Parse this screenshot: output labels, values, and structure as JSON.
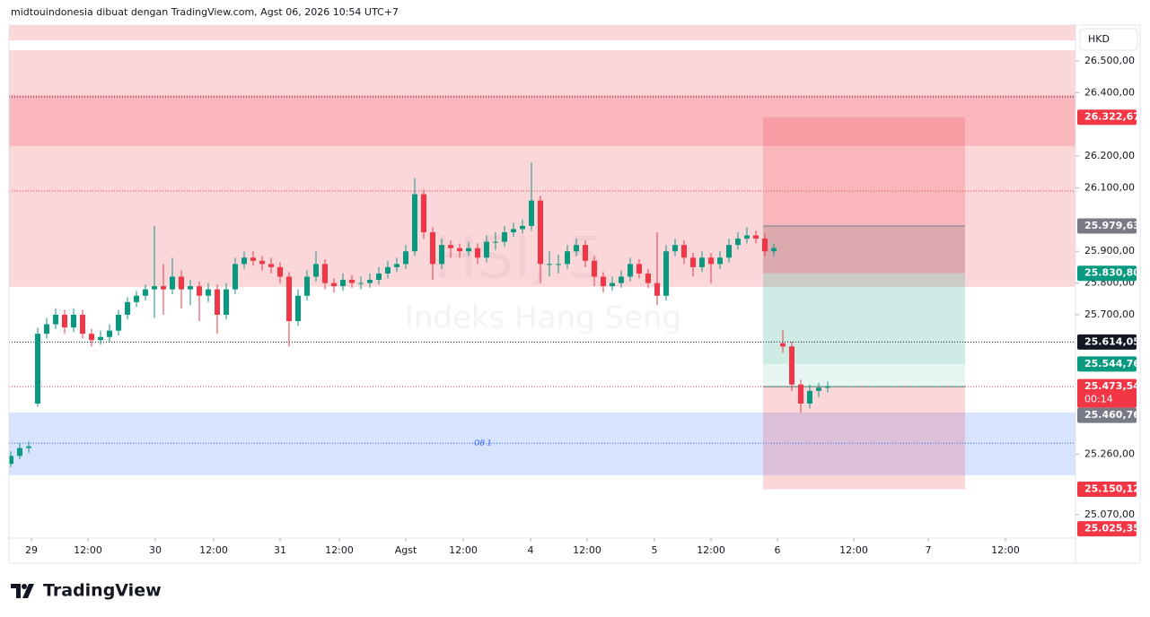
{
  "chart_data": {
    "type": "candlestick",
    "title": "midtouindonesia dibuat dengan TradingView.com, Agst 06, 2026 10:54 UTC+7",
    "currency": "HKD",
    "watermark": "HSI, 5",
    "watermark_subtitle": "Indeks Hang Seng",
    "footer": "TradingView",
    "up_color": "#089981",
    "down_color": "#f23645",
    "ylim": [
      24996,
      26613
    ],
    "yticks": [
      {
        "value": 26500,
        "label": "26.500,00"
      },
      {
        "value": 26400,
        "label": "26.400,00"
      },
      {
        "value": 26200,
        "label": "26.200,00"
      },
      {
        "value": 26100,
        "label": "26.100,00"
      },
      {
        "value": 25900,
        "label": "25.900,00"
      },
      {
        "value": 25800,
        "label": "25.800,00"
      },
      {
        "value": 25700,
        "label": "25.700,00"
      },
      {
        "value": 25260,
        "label": "25.260,00"
      },
      {
        "value": 25070,
        "label": "25.070,00"
      }
    ],
    "xlim": [
      -0.2,
      118.6
    ],
    "xticks": [
      {
        "value": 2.3,
        "label": "29"
      },
      {
        "value": 8.6,
        "label": "12:00"
      },
      {
        "value": 16.1,
        "label": "30"
      },
      {
        "value": 22.6,
        "label": "12:00"
      },
      {
        "value": 30,
        "label": "31"
      },
      {
        "value": 36.6,
        "label": "12:00"
      },
      {
        "value": 44,
        "label": "Agst"
      },
      {
        "value": 50.4,
        "label": "12:00"
      },
      {
        "value": 57.9,
        "label": "4"
      },
      {
        "value": 64.2,
        "label": "12:00"
      },
      {
        "value": 71.7,
        "label": "5"
      },
      {
        "value": 78,
        "label": "12:00"
      },
      {
        "value": 85.4,
        "label": "6"
      },
      {
        "value": 93.9,
        "label": "12:00"
      },
      {
        "value": 102.2,
        "label": "7"
      },
      {
        "value": 110.8,
        "label": "12:00"
      }
    ],
    "zones": [
      {
        "lo": 26565,
        "hi": 26613,
        "color": "rgba(242,54,69,0.2)"
      },
      {
        "lo": 25788,
        "hi": 26534,
        "color": "rgba(242,54,69,0.2)"
      },
      {
        "lo": 26232,
        "hi": 26393,
        "color": "rgba(242,54,69,0.2)"
      },
      {
        "lo": 25194,
        "hi": 25392,
        "color": "rgba(41,98,255,0.18)",
        "label": "OB 1",
        "label_value": 25295
      }
    ],
    "levels": [
      {
        "value": 26387,
        "color": "#131722"
      },
      {
        "value": 26090,
        "color": "#f23645"
      },
      {
        "value": 25614.05,
        "color": "#131722"
      },
      {
        "value": 25473.54,
        "color": "#f23645"
      },
      {
        "value": 25295,
        "color": "#2962ff"
      }
    ],
    "tool": {
      "x": [
        83.8,
        106.3
      ],
      "boxes": [
        {
          "lo": 25830.8,
          "hi": 26322.67,
          "color": "rgba(242,54,69,0.2)"
        },
        {
          "lo": 25830.8,
          "hi": 25979.63,
          "color": "rgba(120,123,134,0.22)"
        },
        {
          "lo": 25544.76,
          "hi": 25830.8,
          "color": "rgba(8,153,129,0.2)"
        },
        {
          "lo": 25473.54,
          "hi": 25544.76,
          "color": "rgba(8,153,129,0.1)"
        },
        {
          "lo": 25150.12,
          "hi": 25473.54,
          "color": "rgba(242,54,69,0.2)"
        }
      ],
      "lines": [
        {
          "value": 25979.63,
          "color": "#787b86"
        },
        {
          "value": 25473.54,
          "color": "#089981"
        }
      ]
    },
    "price_labels": [
      {
        "value": 26322.67,
        "label": "26.322,67",
        "color": "#f23645"
      },
      {
        "value": 25979.63,
        "label": "25.979,63",
        "color": "#787b86"
      },
      {
        "value": 25830.8,
        "label": "25.830,80",
        "color": "#089981"
      },
      {
        "value": 25614.05,
        "label": "25.614,05",
        "color": "#131722"
      },
      {
        "value": 25544.76,
        "label": "25.544,76",
        "color": "#089981"
      },
      {
        "value": 25473.54,
        "label": "25.473,54",
        "color": "#f23645",
        "timer": "00:14"
      },
      {
        "value": 25460.76,
        "label": "25.460,76",
        "color": "#787b86"
      },
      {
        "value": 25150.12,
        "label": "25.150,12",
        "color": "#f23645"
      },
      {
        "value": 25025.35,
        "label": "25.025,35",
        "color": "#f23645"
      }
    ],
    "candles": [
      [
        25230,
        25270,
        25220,
        25255
      ],
      [
        25255,
        25295,
        25245,
        25280
      ],
      [
        25280,
        25300,
        25265,
        25285
      ],
      [
        25420,
        25660,
        25410,
        25640
      ],
      [
        25640,
        25690,
        25625,
        25670
      ],
      [
        25670,
        25720,
        25655,
        25700
      ],
      [
        25700,
        25715,
        25640,
        25660
      ],
      [
        25660,
        25720,
        25645,
        25700
      ],
      [
        25700,
        25715,
        25625,
        25640
      ],
      [
        25640,
        25655,
        25600,
        25620
      ],
      [
        25620,
        25650,
        25605,
        25630
      ],
      [
        25630,
        25670,
        25615,
        25650
      ],
      [
        25650,
        25715,
        25635,
        25700
      ],
      [
        25700,
        25755,
        25685,
        25740
      ],
      [
        25740,
        25775,
        25725,
        25760
      ],
      [
        25760,
        25795,
        25745,
        25780
      ],
      [
        25780,
        25980,
        25690,
        25790
      ],
      [
        25790,
        25860,
        25700,
        25780
      ],
      [
        25780,
        25880,
        25765,
        25820
      ],
      [
        25820,
        25840,
        25720,
        25780
      ],
      [
        25780,
        25810,
        25730,
        25790
      ],
      [
        25790,
        25805,
        25680,
        25760
      ],
      [
        25760,
        25800,
        25740,
        25780
      ],
      [
        25780,
        25795,
        25640,
        25700
      ],
      [
        25700,
        25800,
        25685,
        25780
      ],
      [
        25780,
        25880,
        25765,
        25860
      ],
      [
        25860,
        25900,
        25845,
        25880
      ],
      [
        25880,
        25900,
        25855,
        25870
      ],
      [
        25870,
        25885,
        25840,
        25860
      ],
      [
        25860,
        25880,
        25830,
        25850
      ],
      [
        25850,
        25865,
        25800,
        25820
      ],
      [
        25820,
        25835,
        25600,
        25680
      ],
      [
        25680,
        25780,
        25665,
        25760
      ],
      [
        25760,
        25840,
        25745,
        25820
      ],
      [
        25820,
        25900,
        25805,
        25860
      ],
      [
        25860,
        25875,
        25780,
        25800
      ],
      [
        25800,
        25815,
        25770,
        25790
      ],
      [
        25790,
        25830,
        25775,
        25810
      ],
      [
        25810,
        25825,
        25785,
        25800
      ],
      [
        25800,
        25820,
        25780,
        25800
      ],
      [
        25800,
        25830,
        25785,
        25810
      ],
      [
        25810,
        25850,
        25795,
        25830
      ],
      [
        25830,
        25870,
        25815,
        25850
      ],
      [
        25850,
        25880,
        25835,
        25860
      ],
      [
        25860,
        25920,
        25845,
        25900
      ],
      [
        25900,
        26130,
        25885,
        26080
      ],
      [
        26080,
        26095,
        25940,
        25960
      ],
      [
        25960,
        25975,
        25810,
        25860
      ],
      [
        25860,
        25940,
        25845,
        25920
      ],
      [
        25920,
        25935,
        25880,
        25910
      ],
      [
        25910,
        25925,
        25880,
        25900
      ],
      [
        25900,
        25930,
        25885,
        25910
      ],
      [
        25910,
        25925,
        25860,
        25880
      ],
      [
        25880,
        25950,
        25865,
        25930
      ],
      [
        25930,
        25960,
        25905,
        25930
      ],
      [
        25930,
        25980,
        25915,
        25960
      ],
      [
        25960,
        25990,
        25945,
        25970
      ],
      [
        25970,
        26000,
        25955,
        25980
      ],
      [
        25980,
        26180,
        25965,
        26060
      ],
      [
        26060,
        26075,
        25800,
        25860
      ],
      [
        25860,
        25900,
        25820,
        25860
      ],
      [
        25860,
        25890,
        25830,
        25860
      ],
      [
        25860,
        25920,
        25845,
        25900
      ],
      [
        25900,
        25940,
        25885,
        25920
      ],
      [
        25920,
        25935,
        25850,
        25870
      ],
      [
        25870,
        25885,
        25790,
        25820
      ],
      [
        25820,
        25835,
        25770,
        25790
      ],
      [
        25790,
        25820,
        25775,
        25800
      ],
      [
        25800,
        25840,
        25785,
        25820
      ],
      [
        25820,
        25880,
        25805,
        25860
      ],
      [
        25860,
        25875,
        25815,
        25830
      ],
      [
        25830,
        25845,
        25785,
        25800
      ],
      [
        25800,
        25960,
        25730,
        25760
      ],
      [
        25760,
        25920,
        25745,
        25900
      ],
      [
        25900,
        25940,
        25885,
        25920
      ],
      [
        25920,
        25935,
        25860,
        25880
      ],
      [
        25880,
        25895,
        25820,
        25850
      ],
      [
        25850,
        25900,
        25835,
        25880
      ],
      [
        25880,
        25895,
        25800,
        25860
      ],
      [
        25860,
        25900,
        25845,
        25880
      ],
      [
        25880,
        25940,
        25865,
        25920
      ],
      [
        25920,
        25960,
        25905,
        25940
      ],
      [
        25940,
        25975,
        25925,
        25950
      ],
      [
        25950,
        25965,
        25925,
        25940
      ],
      [
        25940,
        25955,
        25885,
        25900
      ],
      [
        25900,
        25925,
        25885,
        25910
      ],
      [
        25610,
        25650,
        25580,
        25600
      ],
      [
        25600,
        25615,
        25460,
        25480
      ],
      [
        25480,
        25495,
        25390,
        25420
      ],
      [
        25420,
        25480,
        25405,
        25460
      ],
      [
        25460,
        25485,
        25440,
        25470
      ],
      [
        25470,
        25490,
        25455,
        25473.54
      ]
    ]
  }
}
